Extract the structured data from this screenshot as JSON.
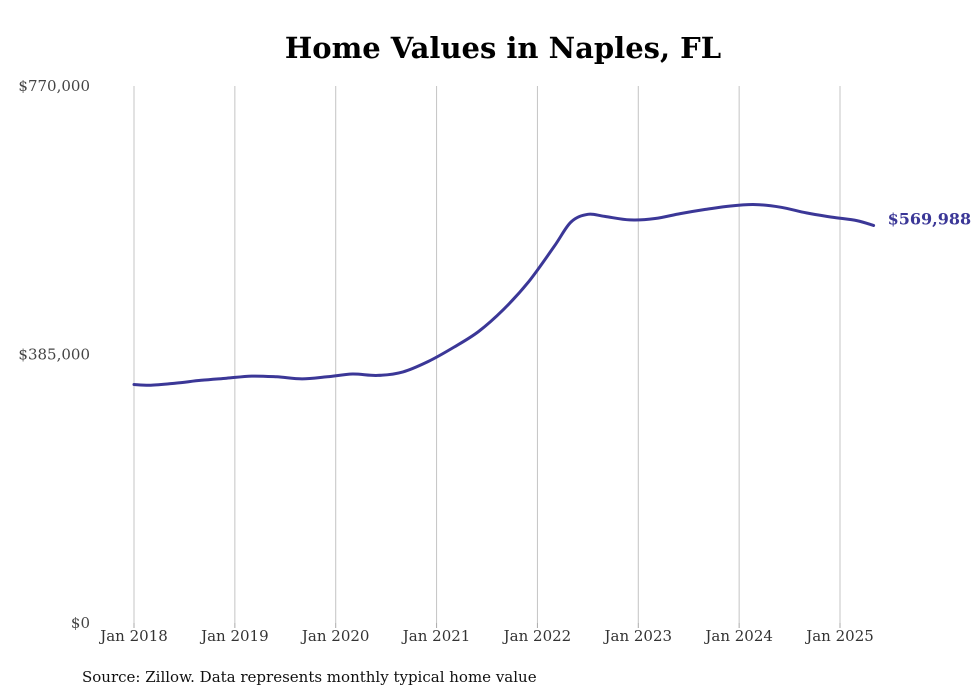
{
  "chart_data": {
    "type": "line",
    "title": "Home Values in Naples, FL",
    "xlabel": "",
    "ylabel": "",
    "ylim": [
      0,
      770000
    ],
    "y_ticks": [
      0,
      385000,
      770000
    ],
    "y_tick_labels": [
      "$0",
      "$385,000",
      "$770,000"
    ],
    "x_range": [
      "2018-01",
      "2025-05"
    ],
    "x_ticks": [
      "2018-01",
      "2019-01",
      "2020-01",
      "2021-01",
      "2022-01",
      "2023-01",
      "2024-01",
      "2025-01"
    ],
    "x_tick_labels": [
      "Jan 2018",
      "Jan 2019",
      "Jan 2020",
      "Jan 2021",
      "Jan 2022",
      "Jan 2023",
      "Jan 2024",
      "Jan 2025"
    ],
    "grid": "vertical",
    "color": "#3b3797",
    "end_value_label": "$569,988",
    "series": [
      {
        "x": [
          "2018-01",
          "2018-03",
          "2018-06",
          "2018-09",
          "2018-12",
          "2019-03",
          "2019-06",
          "2019-09",
          "2019-12",
          "2020-03",
          "2020-06",
          "2020-09",
          "2020-12",
          "2021-03",
          "2021-06",
          "2021-09",
          "2021-12",
          "2022-03",
          "2022-05",
          "2022-07",
          "2022-09",
          "2022-12",
          "2023-03",
          "2023-06",
          "2023-09",
          "2023-12",
          "2024-03",
          "2024-06",
          "2024-09",
          "2024-12",
          "2025-03",
          "2025-05"
        ],
        "values": [
          342000,
          341000,
          344000,
          348000,
          351000,
          354000,
          353000,
          350000,
          353000,
          357000,
          355000,
          360000,
          375000,
          395000,
          418000,
          450000,
          490000,
          540000,
          575000,
          586000,
          583000,
          578000,
          580000,
          587000,
          593000,
          598000,
          600000,
          596000,
          588000,
          582000,
          577000,
          569988
        ]
      }
    ]
  },
  "source_note": "Source: Zillow. Data represents monthly typical home value"
}
